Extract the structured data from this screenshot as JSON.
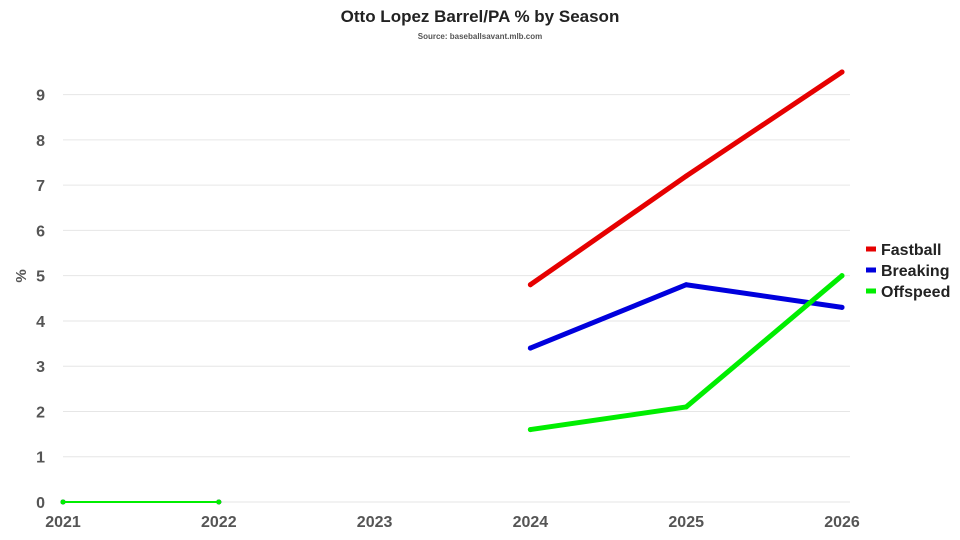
{
  "chart_data": {
    "type": "line",
    "title": "Otto Lopez Barrel/PA % by Season",
    "subtitle": "Source: baseballsavant.mlb.com",
    "xlabel": "",
    "ylabel": "%",
    "x": [
      "2021",
      "2022",
      "2023",
      "2024",
      "2025",
      "2026"
    ],
    "ylim": [
      0,
      9.5
    ],
    "yticks": [
      "0",
      "1",
      "2",
      "3",
      "4",
      "5",
      "6",
      "7",
      "8",
      "9"
    ],
    "grid": "horizontal",
    "legend_position": "right",
    "series": [
      {
        "name": "Fastball",
        "color": "#e60000",
        "segments": [
          [
            [
              "2021",
              0
            ],
            [
              "2022",
              0
            ]
          ],
          [
            [
              "2024",
              4.8
            ],
            [
              "2025",
              7.2
            ],
            [
              "2026",
              9.5
            ]
          ]
        ]
      },
      {
        "name": "Breaking",
        "color": "#0000dd",
        "segments": [
          [
            [
              "2021",
              0
            ],
            [
              "2022",
              0
            ]
          ],
          [
            [
              "2024",
              3.4
            ],
            [
              "2025",
              4.8
            ],
            [
              "2026",
              4.3
            ]
          ]
        ]
      },
      {
        "name": "Offspeed",
        "color": "#00ee00",
        "segments": [
          [
            [
              "2021",
              0
            ],
            [
              "2022",
              0
            ]
          ],
          [
            [
              "2024",
              1.6
            ],
            [
              "2025",
              2.1
            ],
            [
              "2026",
              5.0
            ]
          ]
        ]
      }
    ]
  }
}
